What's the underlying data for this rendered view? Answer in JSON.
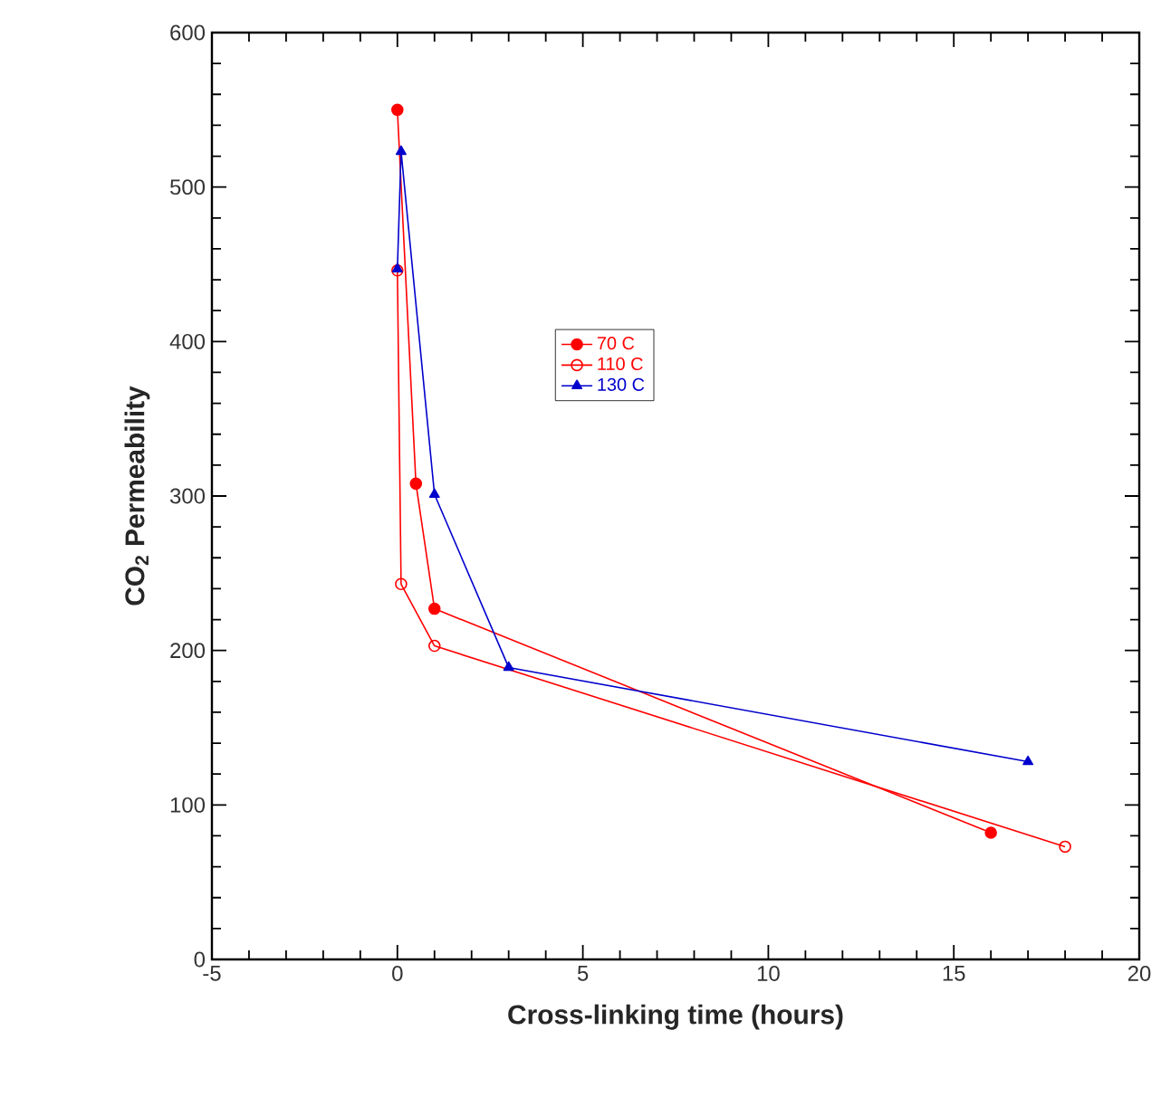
{
  "chart_data": {
    "type": "line",
    "xlabel": "Cross-linking time (hours)",
    "ylabel": "CO$_{2}$ Permeability",
    "xlim": [
      -5,
      20
    ],
    "xticks": [
      -5,
      0,
      5,
      10,
      15,
      20
    ],
    "ylim": [
      0,
      600
    ],
    "yticks": [
      0,
      100,
      200,
      300,
      400,
      500,
      600
    ],
    "grid": false,
    "legend": "center",
    "line_style": "solid",
    "series": [
      {
        "name": "70 C",
        "color": "#ff0000",
        "marker": "circle",
        "x": [
          0,
          0.5,
          1,
          16
        ],
        "values": [
          550,
          308,
          227,
          82
        ]
      },
      {
        "name": "110 C",
        "color": "#ff0000",
        "marker": "open circle",
        "x": [
          0,
          0.1,
          1,
          18
        ],
        "values": [
          446,
          243,
          203,
          73
        ]
      },
      {
        "name": "130 C",
        "color": "#0000cc",
        "marker": "triangle",
        "x": [
          0,
          0.1,
          1,
          3,
          17
        ],
        "values": [
          447,
          523,
          301,
          189,
          128
        ]
      }
    ]
  }
}
